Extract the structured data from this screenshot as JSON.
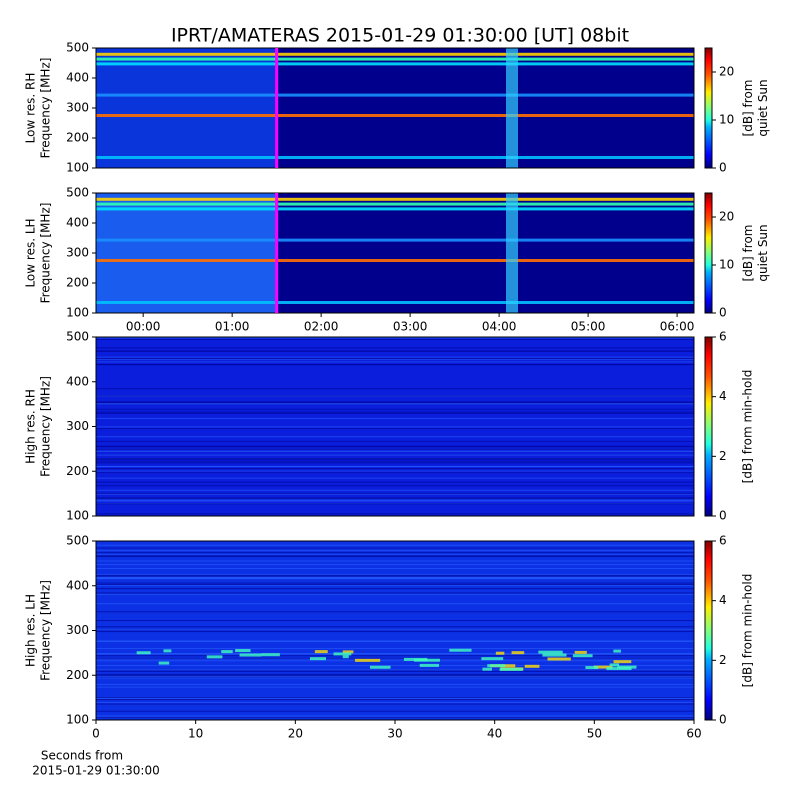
{
  "figure_title": "IPRT/AMATERAS 2015-01-29 01:30:00 [UT]   08bit",
  "chart_data": [
    {
      "type": "heatmap",
      "ylabel": [
        "Low res. RH",
        "Frequency [MHz]"
      ],
      "xlim": [
        -0.53,
        6.19
      ],
      "ylim": [
        100,
        500
      ],
      "yticks": [
        100,
        200,
        300,
        400,
        500
      ],
      "vline": {
        "x": 1.5,
        "color": "#ff00ff"
      },
      "colorbar": {
        "lim": [
          0,
          25
        ],
        "ticks": [
          0,
          10,
          20
        ],
        "label": [
          "[dB] from",
          "quiet Sun"
        ]
      }
    },
    {
      "type": "heatmap",
      "ylabel": [
        "Low res. LH",
        "Frequency [MHz]"
      ],
      "xlim": [
        -0.53,
        6.19
      ],
      "ylim": [
        100,
        500
      ],
      "yticks": [
        100,
        200,
        300,
        400,
        500
      ],
      "xticks": [
        {
          "value": 0,
          "label": "00:00"
        },
        {
          "value": 1,
          "label": "01:00"
        },
        {
          "value": 2,
          "label": "02:00"
        },
        {
          "value": 3,
          "label": "03:00"
        },
        {
          "value": 4,
          "label": "04:00"
        },
        {
          "value": 5,
          "label": "05:00"
        },
        {
          "value": 6,
          "label": "06:00"
        }
      ],
      "vline": {
        "x": 1.5,
        "color": "#ff00ff"
      },
      "colorbar": {
        "lim": [
          0,
          25
        ],
        "ticks": [
          0,
          10,
          20
        ],
        "label": [
          "[dB] from",
          "quiet Sun"
        ]
      }
    },
    {
      "type": "heatmap",
      "ylabel": [
        "High res. RH",
        "Frequency [MHz]"
      ],
      "xlim": [
        0,
        60
      ],
      "ylim": [
        100,
        500
      ],
      "yticks": [
        100,
        200,
        300,
        400,
        500
      ],
      "colorbar": {
        "lim": [
          0,
          6
        ],
        "ticks": [
          0,
          2,
          4,
          6
        ],
        "label": [
          "[dB] from min-hold"
        ]
      }
    },
    {
      "type": "heatmap",
      "ylabel": [
        "High res. LH",
        "Frequency [MHz]"
      ],
      "xlim": [
        0,
        60
      ],
      "ylim": [
        100,
        500
      ],
      "yticks": [
        100,
        200,
        300,
        400,
        500
      ],
      "xticks": [
        0,
        10,
        20,
        30,
        40,
        50,
        60
      ],
      "xlabel": [
        "Seconds from",
        "2015-01-29 01:30:00"
      ],
      "colorbar": {
        "lim": [
          0,
          6
        ],
        "ticks": [
          0,
          2,
          4,
          6
        ],
        "label": [
          "[dB] from min-hold"
        ]
      }
    }
  ]
}
